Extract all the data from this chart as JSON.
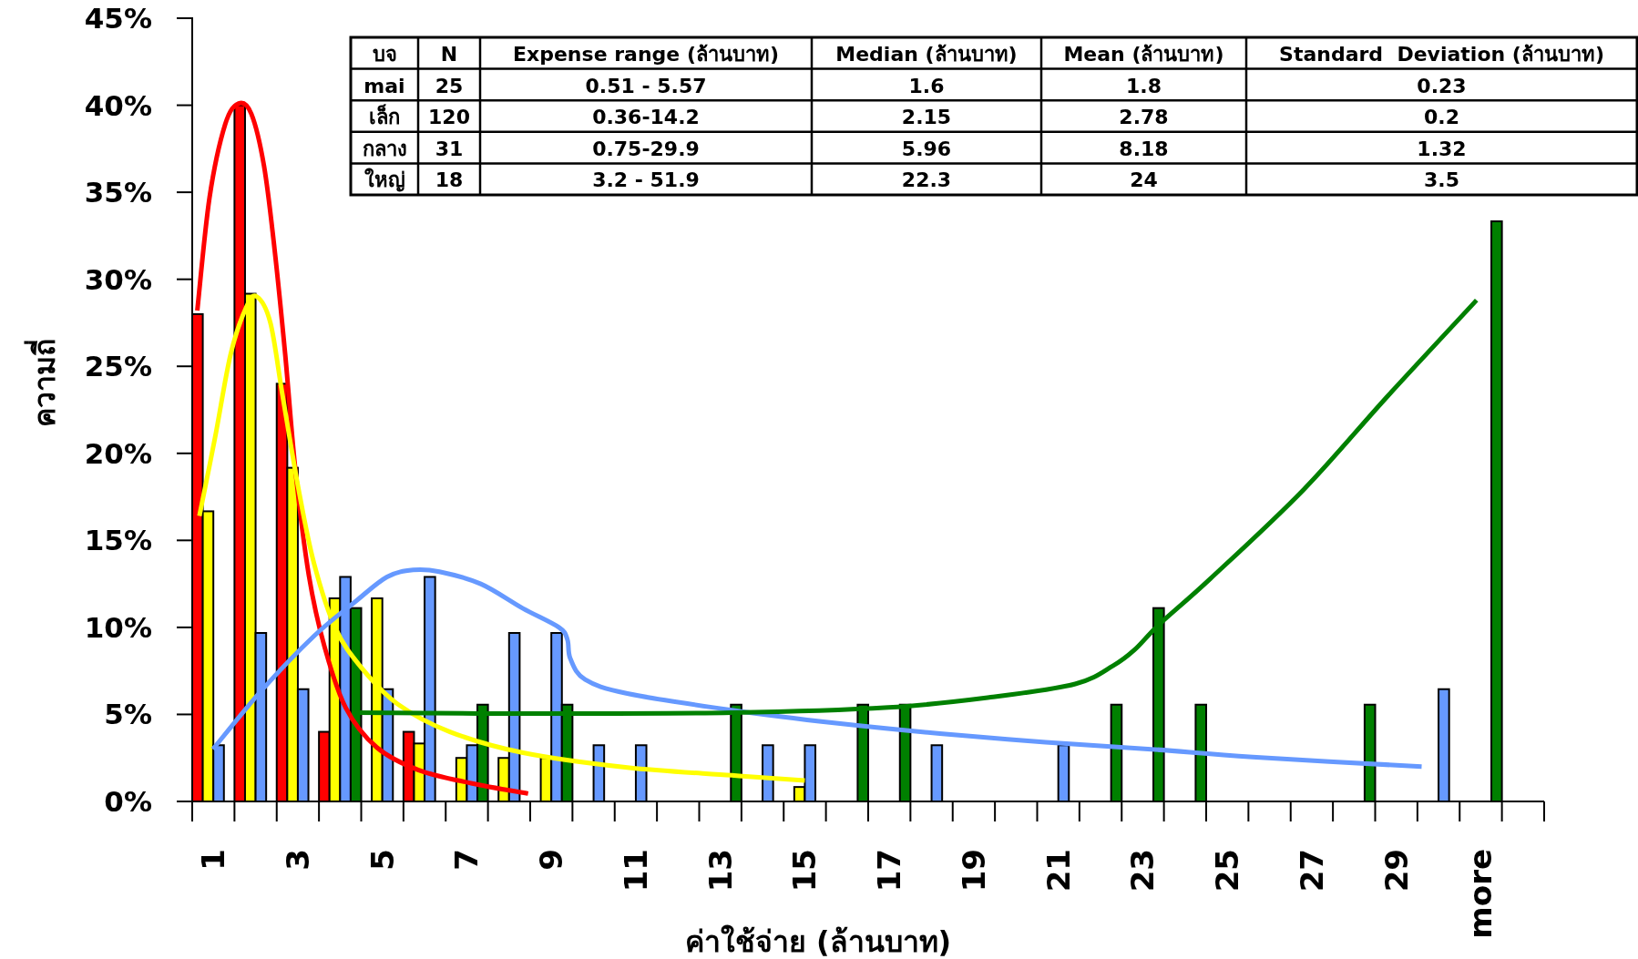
{
  "chart_data": {
    "type": "bar",
    "xlabel": "ค่าใช้จ่าย (ล้านบาท)",
    "ylabel": "ความถี่",
    "x": [
      1,
      2,
      3,
      4,
      5,
      6,
      7,
      8,
      9,
      10,
      11,
      12,
      13,
      14,
      15,
      16,
      17,
      18,
      19,
      20,
      21,
      22,
      23,
      24,
      25,
      26,
      27,
      28,
      29,
      30,
      31
    ],
    "xlim": [
      0.5,
      32.5
    ],
    "ylim": [
      0,
      45
    ],
    "xticks": [
      1,
      3,
      5,
      7,
      9,
      11,
      13,
      15,
      17,
      19,
      21,
      23,
      25,
      27,
      29,
      {
        "value": 31,
        "label": "more"
      }
    ],
    "yticks": [
      {
        "value": 0,
        "label": "0%"
      },
      {
        "value": 5,
        "label": "5%"
      },
      {
        "value": 10,
        "label": "10%"
      },
      {
        "value": 15,
        "label": "15%"
      },
      {
        "value": 20,
        "label": "20%"
      },
      {
        "value": 25,
        "label": "25%"
      },
      {
        "value": 30,
        "label": "30%"
      },
      {
        "value": 35,
        "label": "35%"
      },
      {
        "value": 40,
        "label": "40%"
      },
      {
        "value": 45,
        "label": "45%"
      }
    ],
    "series": [
      {
        "color": "#ff0000",
        "values": [
          28,
          40,
          24,
          4,
          null,
          4,
          null,
          null,
          null,
          null,
          null,
          null,
          null,
          null,
          null,
          null,
          null,
          null,
          null,
          null,
          null,
          null,
          null,
          null,
          null,
          null,
          null,
          null,
          null,
          null,
          null
        ]
      },
      {
        "color": "#ffff00",
        "values": [
          16.67,
          29.17,
          19.17,
          11.67,
          11.67,
          3.33,
          2.5,
          2.5,
          2.5,
          null,
          null,
          null,
          null,
          null,
          0.83,
          null,
          null,
          null,
          null,
          null,
          null,
          null,
          null,
          null,
          null,
          null,
          null,
          null,
          null,
          null,
          null
        ]
      },
      {
        "color": "#6699ff",
        "values": [
          3.23,
          9.68,
          6.45,
          12.9,
          6.45,
          12.9,
          3.23,
          9.68,
          9.68,
          3.23,
          3.23,
          null,
          null,
          3.23,
          3.23,
          null,
          null,
          3.23,
          null,
          null,
          3.23,
          null,
          null,
          null,
          null,
          null,
          null,
          null,
          null,
          6.45,
          null
        ]
      },
      {
        "color": "#008000",
        "values": [
          null,
          null,
          null,
          11.11,
          null,
          null,
          5.56,
          null,
          5.56,
          null,
          null,
          null,
          5.56,
          null,
          null,
          5.56,
          5.56,
          null,
          null,
          null,
          null,
          5.56,
          11.11,
          5.56,
          null,
          null,
          null,
          5.56,
          null,
          null,
          33.33
        ]
      },
      {
        "type": "line",
        "color": "#ff0000",
        "x": [
          0.62,
          0.91,
          1.28,
          1.6,
          1.9,
          2.2,
          2.45,
          2.7,
          2.94,
          3.26,
          3.63,
          4.13,
          4.87,
          5.86,
          7.1,
          8.45
        ],
        "values": [
          28.2,
          34.7,
          38.9,
          40.1,
          39.5,
          36.5,
          31.7,
          25.7,
          19.1,
          13.0,
          8.9,
          5.4,
          3.1,
          1.8,
          1.05,
          0.45
        ]
      },
      {
        "type": "line",
        "color": "#ffff00",
        "x": [
          0.67,
          1.04,
          1.41,
          1.78,
          2.03,
          2.35,
          2.64,
          3.02,
          3.38,
          3.88,
          4.5,
          5.36,
          6.6,
          8.33,
          10.8,
          13.27,
          15.0
        ],
        "values": [
          16.4,
          20.9,
          25.7,
          28.4,
          29.0,
          27.5,
          23.3,
          17.9,
          13.7,
          10.0,
          7.7,
          5.6,
          4.0,
          2.8,
          1.95,
          1.5,
          1.2
        ]
      },
      {
        "type": "line",
        "color": "#6699ff",
        "x": [
          0.99,
          2.15,
          3.38,
          4.37,
          5.11,
          5.73,
          6.35,
          7.33,
          8.32,
          9.18,
          9.38,
          9.45,
          9.8,
          10.8,
          13.27,
          15.74,
          18.2,
          20.7,
          23.2,
          25.6,
          29.6
        ],
        "values": [
          3.0,
          6.4,
          9.5,
          11.5,
          12.9,
          13.3,
          13.2,
          12.5,
          11.1,
          10.0,
          9.3,
          8.2,
          7.0,
          6.2,
          5.25,
          4.5,
          3.9,
          3.4,
          3.0,
          2.55,
          2.0
        ]
      },
      {
        "type": "line",
        "color": "#008000",
        "x": [
          4.37,
          8.33,
          13.27,
          16.98,
          19.45,
          21.4,
          22.3,
          22.8,
          23.4,
          24.6,
          26.8,
          28.8,
          30.9
        ],
        "values": [
          5.1,
          5.05,
          5.1,
          5.4,
          6.0,
          6.75,
          7.8,
          8.7,
          10.2,
          12.8,
          17.9,
          23.3,
          28.8
        ]
      }
    ],
    "annotations": [
      "บจ",
      "N",
      "Expense range (ล้านบาท)",
      "Median (ล้านบาท)",
      "Mean (ล้านบาท)",
      "Standard  Deviation (ล้านบาท)",
      "mai",
      "25",
      "0.51 - 5.57",
      "1.6",
      "1.8",
      "0.23",
      "เล็ก",
      "120",
      "0.36-14.2",
      "2.15",
      "2.78",
      "0.2",
      "กลาง",
      "31",
      "0.75-29.9",
      "5.96",
      "8.18",
      "1.32",
      "ใหญ่",
      "18",
      "3.2 - 51.9",
      "22.3",
      "24",
      "3.5"
    ],
    "line_style": "solid"
  }
}
